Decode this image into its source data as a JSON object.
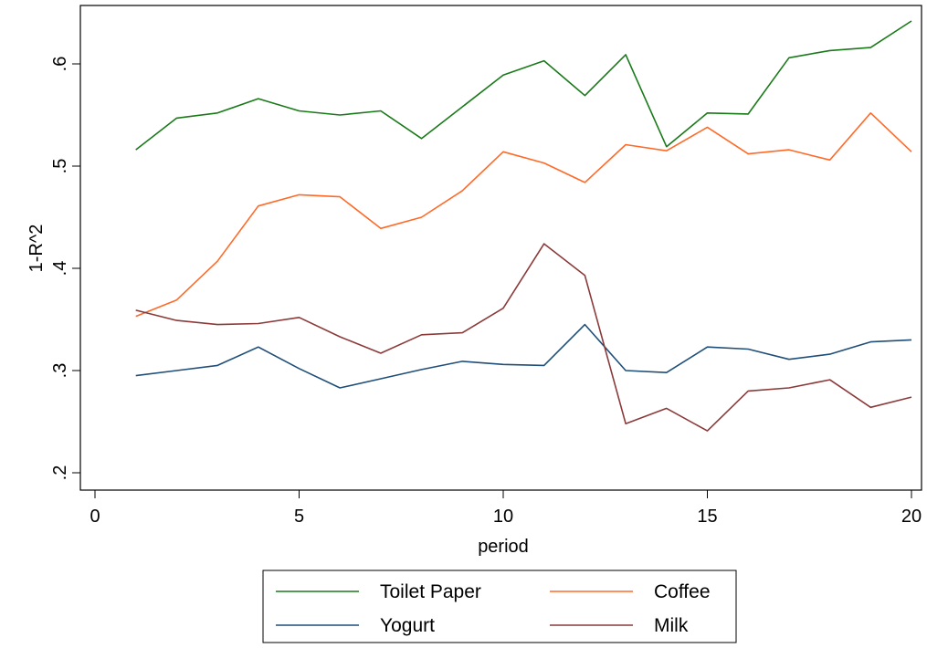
{
  "chart_data": {
    "type": "line",
    "title": "",
    "xlabel": "period",
    "ylabel": "1-R^2",
    "xlim": [
      0,
      20
    ],
    "ylim": [
      0.2,
      0.6
    ],
    "xticks": [
      0,
      5,
      10,
      15,
      20
    ],
    "xtick_labels": [
      "0",
      "5",
      "10",
      "15",
      "20"
    ],
    "yticks": [
      0.2,
      0.3,
      0.4,
      0.5,
      0.6
    ],
    "ytick_labels": [
      ".2",
      ".3",
      ".4",
      ".5",
      ".6"
    ],
    "grid": false,
    "legend_position": "bottom",
    "x": [
      1,
      2,
      3,
      4,
      5,
      6,
      7,
      8,
      9,
      10,
      11,
      12,
      13,
      14,
      15,
      16,
      17,
      18,
      19,
      20
    ],
    "series": [
      {
        "name": "Toilet Paper",
        "color": "#1a7a1a",
        "values": [
          0.516,
          0.547,
          0.552,
          0.566,
          0.554,
          0.55,
          0.554,
          0.527,
          0.558,
          0.589,
          0.603,
          0.569,
          0.609,
          0.519,
          0.552,
          0.551,
          0.606,
          0.613,
          0.616,
          0.642
        ]
      },
      {
        "name": "Coffee",
        "color": "#ff6a28",
        "values": [
          0.353,
          0.369,
          0.407,
          0.461,
          0.472,
          0.47,
          0.439,
          0.45,
          0.476,
          0.514,
          0.503,
          0.484,
          0.521,
          0.515,
          0.538,
          0.512,
          0.516,
          0.506,
          0.552,
          0.514
        ]
      },
      {
        "name": "Yogurt",
        "color": "#1f4e79",
        "values": [
          0.295,
          0.3,
          0.305,
          0.323,
          0.302,
          0.283,
          0.292,
          0.301,
          0.309,
          0.306,
          0.305,
          0.345,
          0.3,
          0.298,
          0.323,
          0.321,
          0.311,
          0.316,
          0.328,
          0.33
        ]
      },
      {
        "name": "Milk",
        "color": "#8b3a3a",
        "values": [
          0.359,
          0.349,
          0.345,
          0.346,
          0.352,
          0.333,
          0.317,
          0.335,
          0.337,
          0.361,
          0.424,
          0.393,
          0.248,
          0.263,
          0.241,
          0.28,
          0.283,
          0.291,
          0.264,
          0.274
        ]
      }
    ]
  }
}
